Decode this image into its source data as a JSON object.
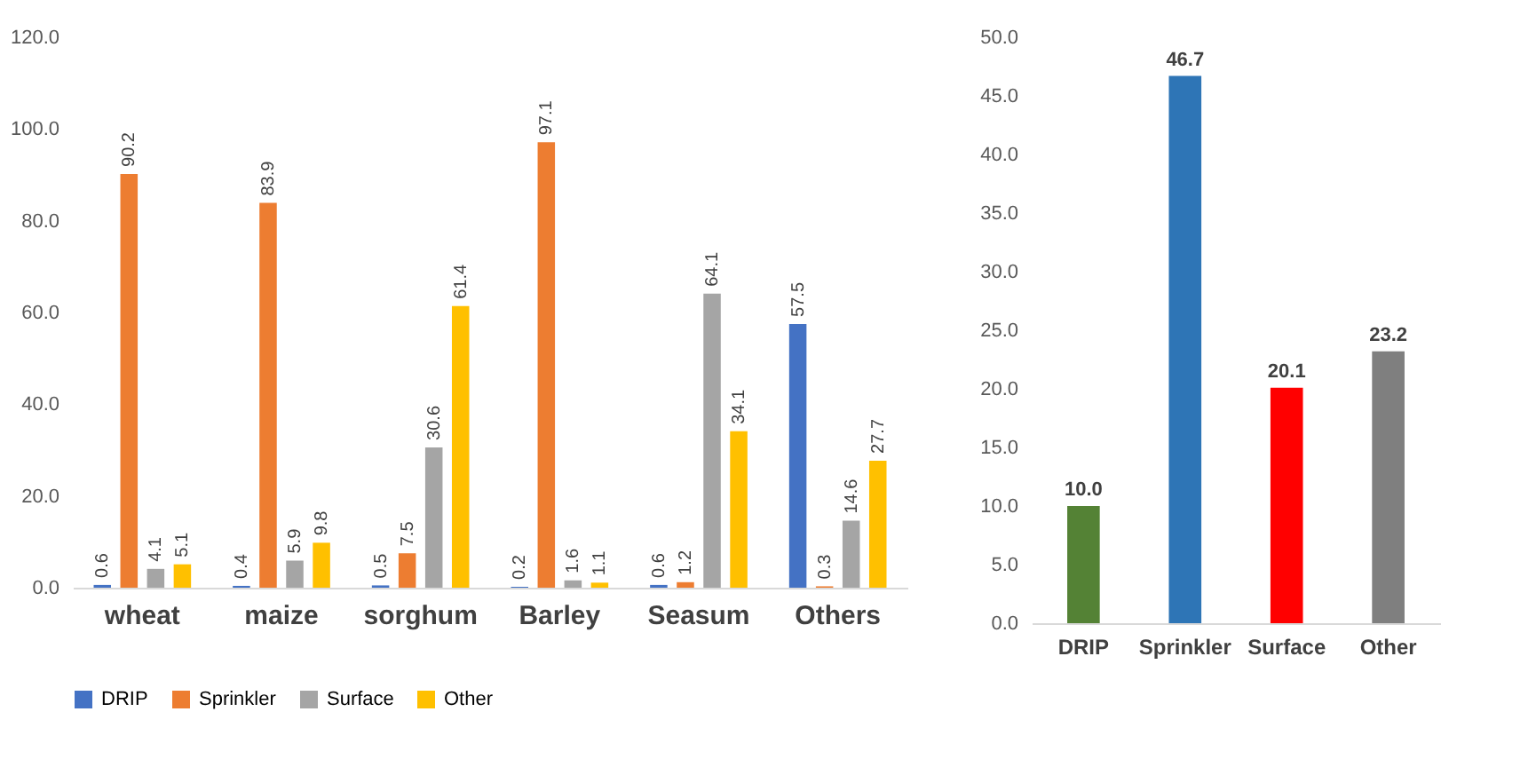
{
  "chart_data": [
    {
      "type": "bar",
      "categories": [
        "wheat",
        "maize",
        "sorghum",
        "Barley",
        "Seasum",
        "Others"
      ],
      "series": [
        {
          "name": "DRIP",
          "color": "#4472c4",
          "values": [
            0.6,
            0.4,
            0.5,
            0.2,
            0.6,
            57.5
          ]
        },
        {
          "name": "Sprinkler",
          "color": "#ed7d31",
          "values": [
            90.2,
            83.9,
            7.5,
            97.1,
            1.2,
            0.3
          ]
        },
        {
          "name": "Surface",
          "color": "#a5a5a5",
          "values": [
            4.1,
            5.9,
            30.6,
            1.6,
            64.1,
            14.6
          ]
        },
        {
          "name": "Other",
          "color": "#ffc000",
          "values": [
            5.1,
            9.8,
            61.4,
            1.1,
            34.1,
            27.7
          ]
        }
      ],
      "ylim": [
        0,
        120
      ],
      "yticks": [
        {
          "value": 0,
          "label": "0.0"
        },
        {
          "value": 20,
          "label": "20.0"
        },
        {
          "value": 40,
          "label": "40.0"
        },
        {
          "value": 60,
          "label": "60.0"
        },
        {
          "value": 80,
          "label": "80.0"
        },
        {
          "value": 100,
          "label": "100.0"
        },
        {
          "value": 120,
          "label": "120.0"
        }
      ],
      "data_labels": true,
      "grid": false,
      "legend": "bottom"
    },
    {
      "type": "bar",
      "categories": [
        "DRIP",
        "Sprinkler",
        "Surface",
        "Other"
      ],
      "values": [
        10.0,
        46.7,
        20.1,
        23.2
      ],
      "colors": [
        "#548235",
        "#2e75b6",
        "#ff0000",
        "#7f7f7f"
      ],
      "value_labels": [
        "10.0",
        "46.7",
        "20.1",
        "23.2"
      ],
      "ylim": [
        0,
        50
      ],
      "yticks": [
        {
          "value": 0,
          "label": "0.0"
        },
        {
          "value": 5,
          "label": "5.0"
        },
        {
          "value": 10,
          "label": "10.0"
        },
        {
          "value": 15,
          "label": "15.0"
        },
        {
          "value": 20,
          "label": "20.0"
        },
        {
          "value": 25,
          "label": "25.0"
        },
        {
          "value": 30,
          "label": "30.0"
        },
        {
          "value": 35,
          "label": "35.0"
        },
        {
          "value": 40,
          "label": "40.0"
        },
        {
          "value": 45,
          "label": "45.0"
        },
        {
          "value": 50,
          "label": "50.0"
        }
      ],
      "grid": false
    }
  ]
}
